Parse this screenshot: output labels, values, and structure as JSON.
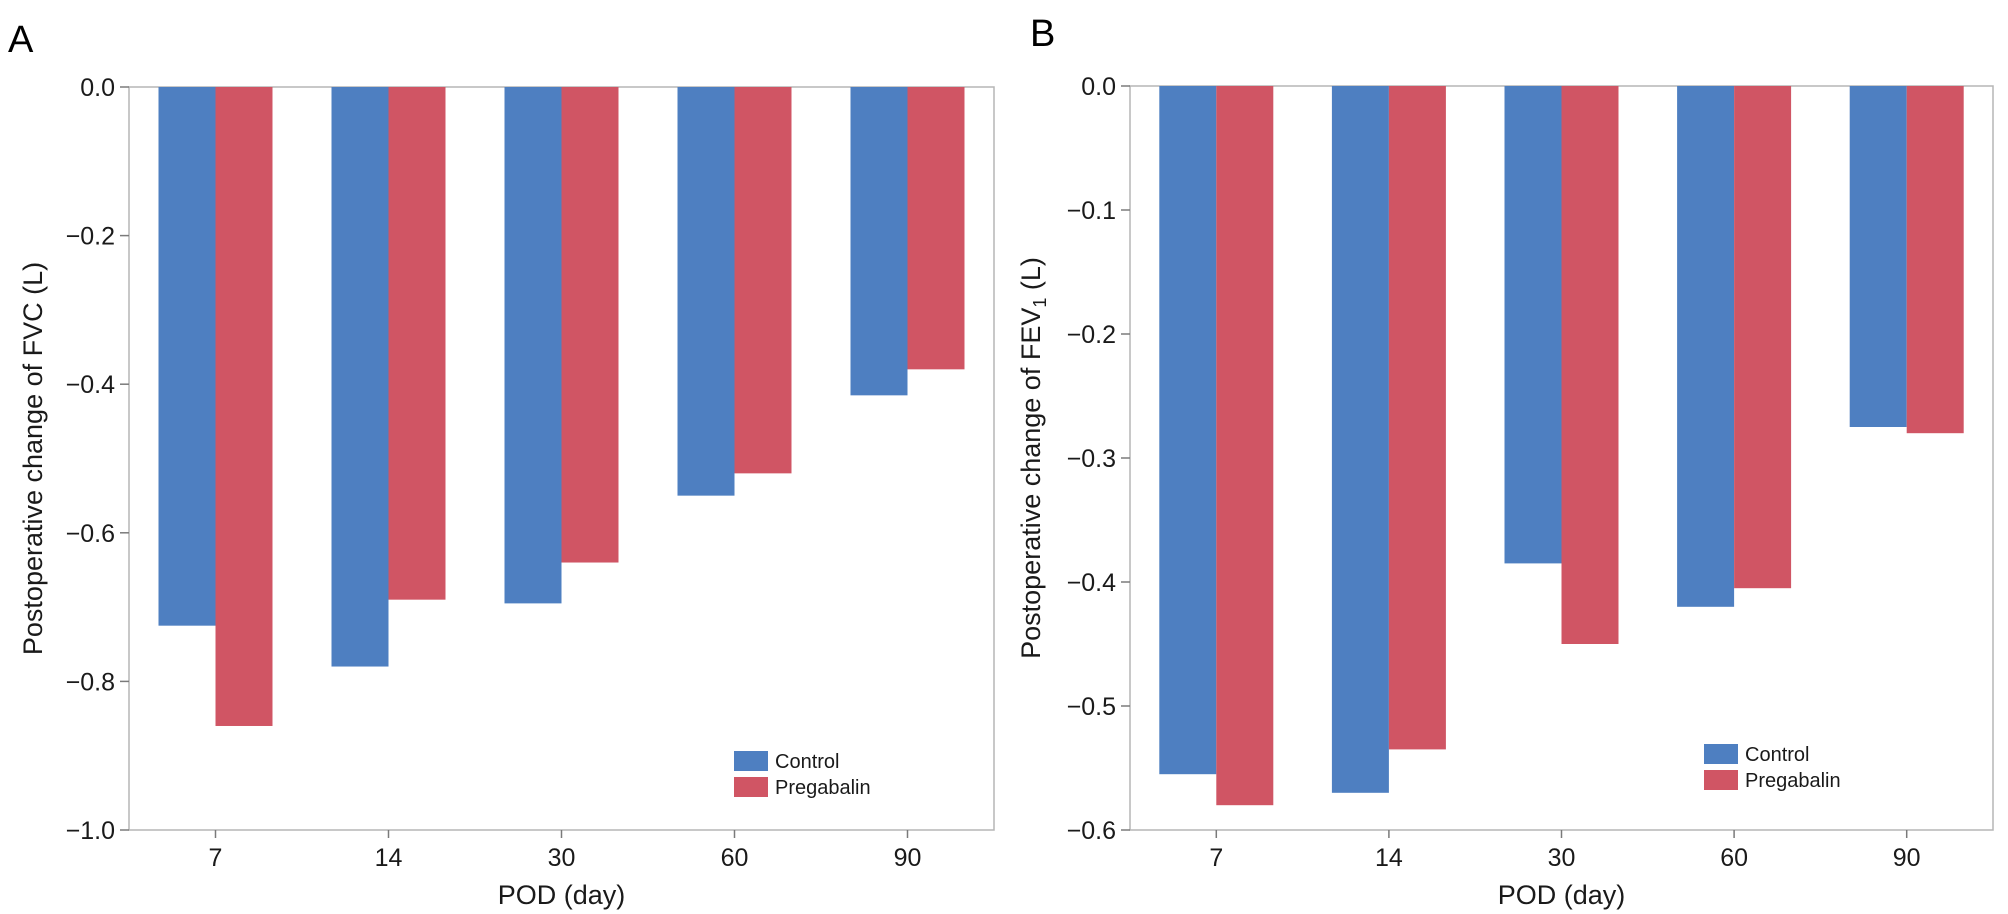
{
  "chart_data": [
    {
      "type": "bar",
      "panel_label": "A",
      "categories": [
        "7",
        "14",
        "30",
        "60",
        "90"
      ],
      "series": [
        {
          "name": "Control",
          "color": "#4e7fc1",
          "values": [
            -0.725,
            -0.78,
            -0.695,
            -0.55,
            -0.415
          ]
        },
        {
          "name": "Pregabalin",
          "color": "#d05564",
          "values": [
            -0.86,
            -0.69,
            -0.64,
            -0.52,
            -0.38
          ]
        }
      ],
      "xlabel": "POD (day)",
      "ylabel_main": "Postoperative change of FVC (L)",
      "ylabel_sub": "",
      "ylabel_tail": "",
      "ylim": [
        -1.0,
        0.0
      ],
      "yticks": [
        0.0,
        -0.2,
        -0.4,
        -0.6,
        -0.8,
        -1.0
      ],
      "ytick_labels": [
        "0.0",
        "−0.2",
        "−0.4",
        "−0.6",
        "−0.8",
        "−1.0"
      ],
      "legend_position": "bottom-right"
    },
    {
      "type": "bar",
      "panel_label": "B",
      "categories": [
        "7",
        "14",
        "30",
        "60",
        "90"
      ],
      "series": [
        {
          "name": "Control",
          "color": "#4e7fc1",
          "values": [
            -0.555,
            -0.57,
            -0.385,
            -0.42,
            -0.275
          ]
        },
        {
          "name": "Pregabalin",
          "color": "#d05564",
          "values": [
            -0.58,
            -0.535,
            -0.45,
            -0.405,
            -0.28
          ]
        }
      ],
      "xlabel": "POD (day)",
      "ylabel_main": "Postoperative change of FEV",
      "ylabel_sub": "1",
      "ylabel_tail": " (L)",
      "ylim": [
        -0.6,
        0.0
      ],
      "yticks": [
        0.0,
        -0.1,
        -0.2,
        -0.3,
        -0.4,
        -0.5,
        -0.6
      ],
      "ytick_labels": [
        "0.0",
        "−0.1",
        "−0.2",
        "−0.3",
        "−0.4",
        "−0.5",
        "−0.6"
      ],
      "legend_position": "bottom-right"
    }
  ]
}
